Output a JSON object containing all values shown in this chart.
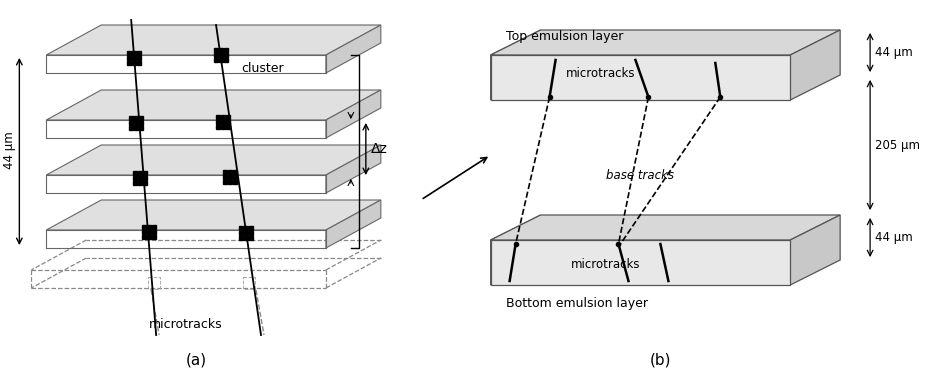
{
  "bg_color": "#ffffff",
  "gray_face": "#e8e8e8",
  "gray_edge": "#555555",
  "dark_gray_side": "#aaaaaa",
  "label_a": "(a)",
  "label_b": "(b)",
  "cluster_label": "cluster",
  "microtracks_label_a": "microtracks",
  "microtracks_label_b": "microtracks",
  "base_tracks_label": "base tracks",
  "top_layer_label": "Top emulsion layer",
  "bottom_layer_label": "Bottom emulsion layer",
  "label_44_top": "44 μm",
  "label_44_bot": "44 μm",
  "label_205": "205 μm",
  "label_44_left": "44 μm",
  "delta_z_label": "Δz"
}
